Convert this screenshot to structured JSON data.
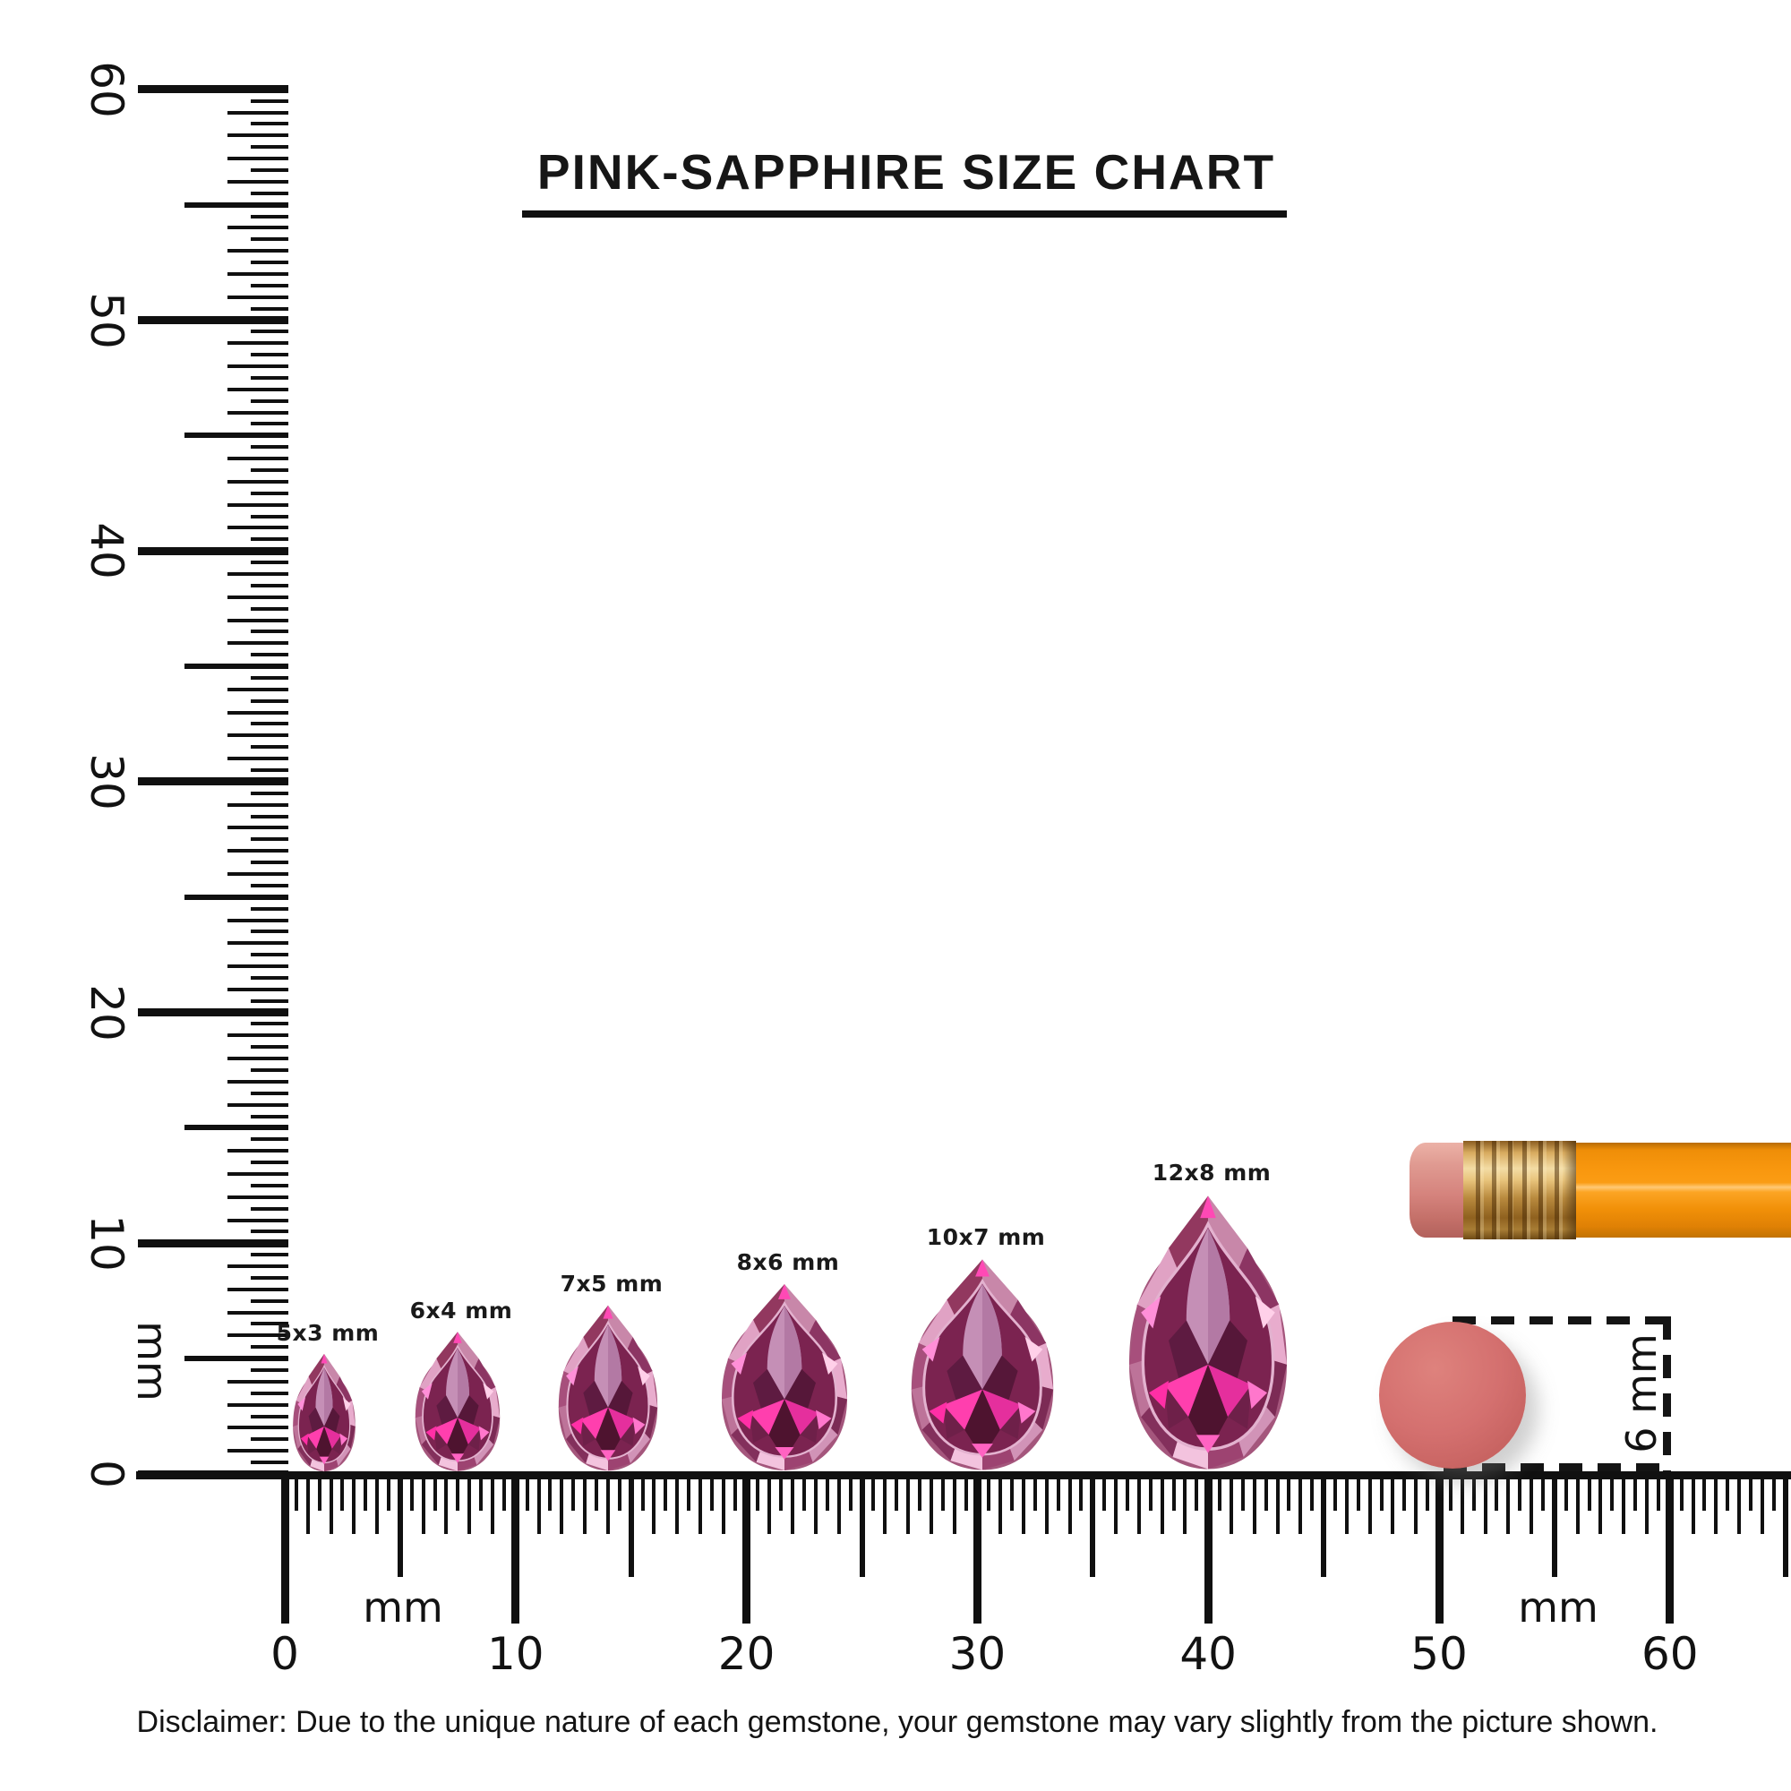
{
  "title": "PINK-SAPPHIRE SIZE CHART",
  "disclaimer": "Disclaimer: Due to the unique nature of each gemstone, your gemstone may vary slightly from the picture shown.",
  "vertical_ruler": {
    "unit": "mm",
    "tick_labels": [
      "0",
      "10",
      "20",
      "30",
      "40",
      "50",
      "60"
    ]
  },
  "horizontal_ruler": {
    "unit_left": "mm",
    "unit_right": "mm",
    "tick_labels": [
      "0",
      "10",
      "20",
      "30",
      "40",
      "50",
      "60"
    ]
  },
  "gems": [
    {
      "label": "5x3 mm",
      "height_mm": 5,
      "width_mm": 3
    },
    {
      "label": "6x4 mm",
      "height_mm": 6,
      "width_mm": 4
    },
    {
      "label": "7x5 mm",
      "height_mm": 7,
      "width_mm": 5
    },
    {
      "label": "8x6 mm",
      "height_mm": 8,
      "width_mm": 6
    },
    {
      "label": "10x7 mm",
      "height_mm": 10,
      "width_mm": 7
    },
    {
      "label": "12x8 mm",
      "height_mm": 12,
      "width_mm": 8
    }
  ],
  "size_marker": {
    "label": "6 mm"
  },
  "colors": {
    "ink": "#111111",
    "gem_bright_pink": "#ff3fae",
    "gem_mauve": "#c887a9",
    "gem_dark": "#5e1b41",
    "pencil_orange": "#f6940e",
    "ferrule_gold": "#d8ab5f",
    "eraser_pink": "#d5837d",
    "marker_red": "#cf6765"
  }
}
